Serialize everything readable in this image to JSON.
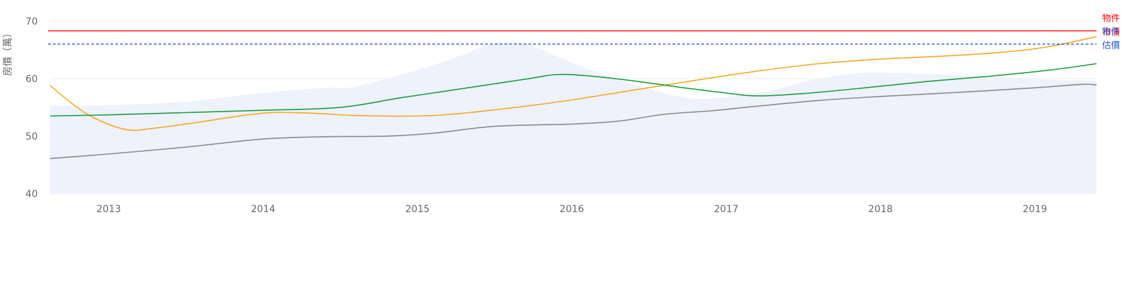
{
  "chart_data": {
    "type": "line",
    "title": "",
    "xlabel": "",
    "ylabel": "房價（萬）",
    "xlim": [
      2012.62,
      2019.4
    ],
    "ylim": [
      40,
      72
    ],
    "yticks": [
      40,
      50,
      60,
      70
    ],
    "xticks": [
      2013,
      2014,
      2015,
      2016,
      2017,
      2018,
      2019
    ],
    "grid": true,
    "legend": "none",
    "reference_lines": [
      {
        "label_lines": [
          "物件",
          "市價"
        ],
        "value": 68.3,
        "color": "#ff0000",
        "style": "solid"
      },
      {
        "label_lines": [
          "物件",
          "估價"
        ],
        "value": 66.0,
        "color": "#2255dd",
        "style": "dashed"
      }
    ],
    "series": [
      {
        "type": "area",
        "color": "#eef2fc",
        "x": [
          2012.62,
          2013.0,
          2013.5,
          2014.0,
          2014.4,
          2014.6,
          2015.0,
          2015.3,
          2015.5,
          2015.7,
          2016.0,
          2016.3,
          2016.6,
          2016.8,
          2017.0,
          2017.3,
          2017.6,
          2017.9,
          2018.3,
          2018.7,
          2019.0,
          2019.4
        ],
        "values": [
          55.3,
          55.4,
          56.0,
          57.5,
          58.4,
          58.6,
          61.5,
          64.2,
          66.2,
          66.0,
          62.8,
          59.8,
          57.5,
          56.5,
          56.8,
          58.0,
          60.0,
          61.0,
          60.8,
          60.4,
          59.9,
          59.6
        ]
      },
      {
        "type": "line",
        "color": "#f5a623",
        "x": [
          2012.62,
          2012.85,
          2013.1,
          2013.3,
          2013.6,
          2014.0,
          2014.3,
          2014.6,
          2015.0,
          2015.3,
          2015.7,
          2016.0,
          2016.4,
          2016.8,
          2017.2,
          2017.6,
          2018.0,
          2018.4,
          2018.8,
          2019.1,
          2019.4
        ],
        "values": [
          58.8,
          54.0,
          51.2,
          51.4,
          52.5,
          54.0,
          54.0,
          53.6,
          53.5,
          54.0,
          55.2,
          56.3,
          58.0,
          59.7,
          61.3,
          62.6,
          63.4,
          63.9,
          64.6,
          65.6,
          67.3
        ]
      },
      {
        "type": "line",
        "color": "#1a9c3a",
        "x": [
          2012.62,
          2013.0,
          2013.5,
          2014.0,
          2014.5,
          2014.9,
          2015.3,
          2015.7,
          2015.9,
          2016.1,
          2016.4,
          2016.7,
          2017.0,
          2017.2,
          2017.5,
          2017.9,
          2018.3,
          2018.7,
          2019.1,
          2019.4
        ],
        "values": [
          53.5,
          53.7,
          54.1,
          54.5,
          55.0,
          56.7,
          58.3,
          59.9,
          60.7,
          60.5,
          59.6,
          58.5,
          57.5,
          57.0,
          57.4,
          58.4,
          59.5,
          60.4,
          61.5,
          62.6
        ]
      },
      {
        "type": "line",
        "color": "#888888",
        "x": [
          2012.62,
          2013.0,
          2013.5,
          2014.0,
          2014.4,
          2014.8,
          2015.1,
          2015.5,
          2016.0,
          2016.3,
          2016.6,
          2016.9,
          2017.2,
          2017.6,
          2018.0,
          2018.5,
          2019.0,
          2019.3,
          2019.4
        ],
        "values": [
          46.1,
          46.9,
          48.1,
          49.5,
          49.9,
          50.0,
          50.5,
          51.7,
          52.1,
          52.6,
          53.8,
          54.4,
          55.2,
          56.2,
          56.9,
          57.6,
          58.4,
          59.0,
          58.9
        ]
      }
    ]
  }
}
